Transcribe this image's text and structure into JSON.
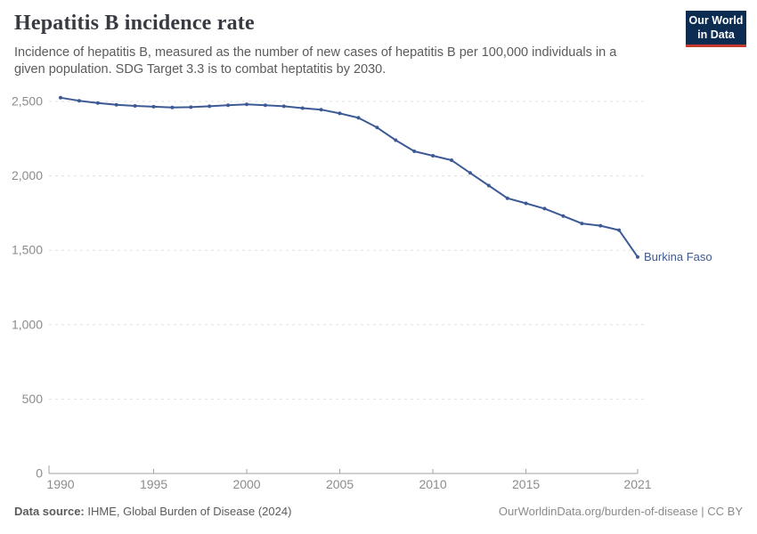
{
  "header": {
    "title": "Hepatitis B incidence rate",
    "subtitle": "Incidence of hepatitis B, measured as the number of new cases of hepatitis B per 100,000 individuals in a given population. SDG Target 3.3 is to combat heptatitis by 2030."
  },
  "logo": {
    "line1": "Our World",
    "line2": "in Data"
  },
  "footer": {
    "source_label": "Data source:",
    "source_value": " IHME, Global Burden of Disease (2024)",
    "attribution": "OurWorldinData.org/burden-of-disease | CC BY"
  },
  "colors": {
    "series": "#3d5a96",
    "grid": "#e0e0e0",
    "axis": "#a2a2a2",
    "tick_label": "#8c8c8c",
    "logo_bg": "#0d2c52",
    "logo_stripe": "#c6392e"
  },
  "chart_data": {
    "type": "line",
    "title": "Hepatitis B incidence rate",
    "xlabel": "",
    "ylabel": "",
    "xlim": [
      1990,
      2021
    ],
    "ylim": [
      0,
      2500
    ],
    "grid": "horizontal-dashed",
    "legend_position": "end-of-line-label",
    "x_tick_values": [
      1990,
      1995,
      2000,
      2005,
      2010,
      2015,
      2021
    ],
    "x_tick_labels": [
      "1990",
      "1995",
      "2000",
      "2005",
      "2010",
      "2015",
      "2021"
    ],
    "y_tick_values": [
      0,
      500,
      1000,
      1500,
      2000,
      2500
    ],
    "y_tick_labels": [
      "0",
      "500",
      "1,000",
      "1,500",
      "2,000",
      "2,500"
    ],
    "series": [
      {
        "name": "Burkina Faso",
        "color": "#3d5a96",
        "x": [
          1990,
          1991,
          1992,
          1993,
          1994,
          1995,
          1996,
          1997,
          1998,
          1999,
          2000,
          2001,
          2002,
          2003,
          2004,
          2005,
          2006,
          2007,
          2008,
          2009,
          2010,
          2011,
          2012,
          2013,
          2014,
          2015,
          2016,
          2017,
          2018,
          2019,
          2020,
          2021
        ],
        "values": [
          2525,
          2505,
          2490,
          2478,
          2470,
          2465,
          2460,
          2462,
          2468,
          2475,
          2480,
          2475,
          2468,
          2455,
          2445,
          2420,
          2390,
          2325,
          2240,
          2165,
          2135,
          2105,
          2020,
          1935,
          1850,
          1815,
          1780,
          1730,
          1680,
          1665,
          1635,
          1455
        ]
      }
    ]
  }
}
